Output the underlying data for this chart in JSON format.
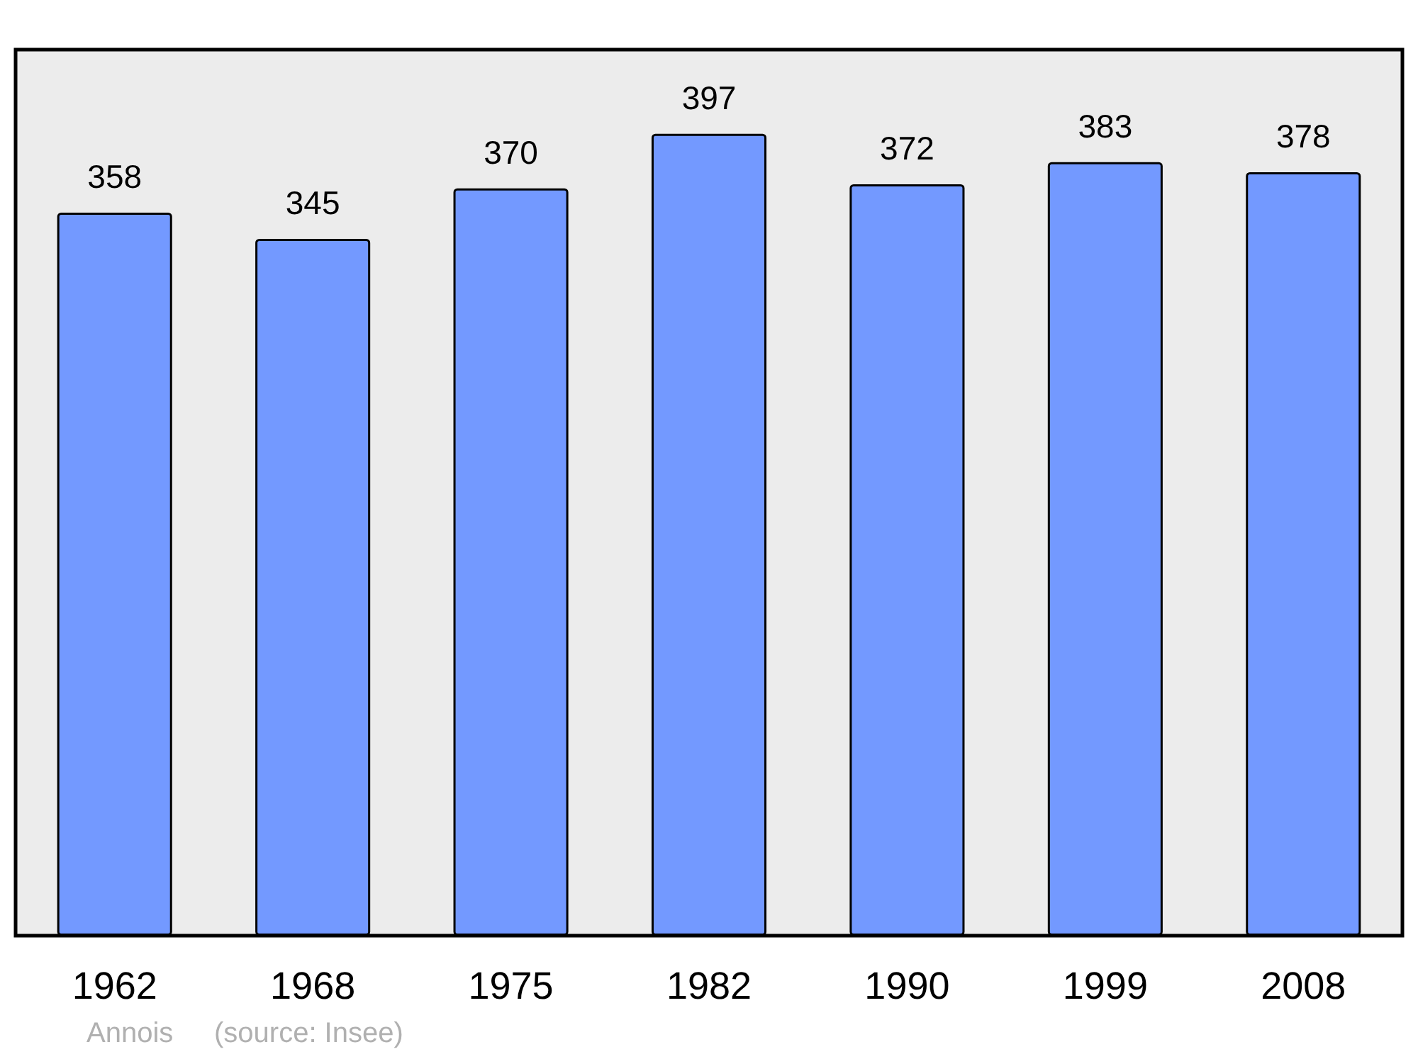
{
  "chart_data": {
    "type": "bar",
    "categories": [
      "1962",
      "1968",
      "1975",
      "1982",
      "1990",
      "1999",
      "2008"
    ],
    "values": [
      358,
      345,
      370,
      397,
      372,
      383,
      378
    ],
    "color": "#7399ff",
    "data_labels": true,
    "annotations": [
      "Annois",
      "(source: Insee)"
    ]
  }
}
